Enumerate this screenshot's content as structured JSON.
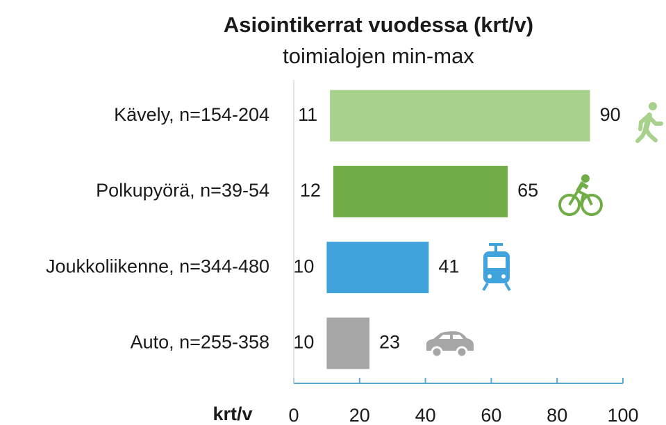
{
  "chart_data": {
    "type": "bar",
    "orientation": "horizontal",
    "floating": true,
    "title": "Asiointikerrat vuodessa (krt/v)",
    "subtitle": "toimialojen min-max",
    "x_label": "krt/v",
    "categories": [
      "Kävely, n=154-204",
      "Polkupyörä, n=39-54",
      "Joukkoliikenne, n=344-480",
      "Auto, n=255-358"
    ],
    "low": [
      11,
      12,
      10,
      10
    ],
    "high": [
      90,
      65,
      41,
      23
    ],
    "colors": [
      "#a9d18e",
      "#70ad47",
      "#41a3dc",
      "#a6a6a6"
    ],
    "xlim": [
      0,
      100
    ],
    "xticks": [
      0,
      20,
      40,
      60,
      80,
      100
    ]
  }
}
